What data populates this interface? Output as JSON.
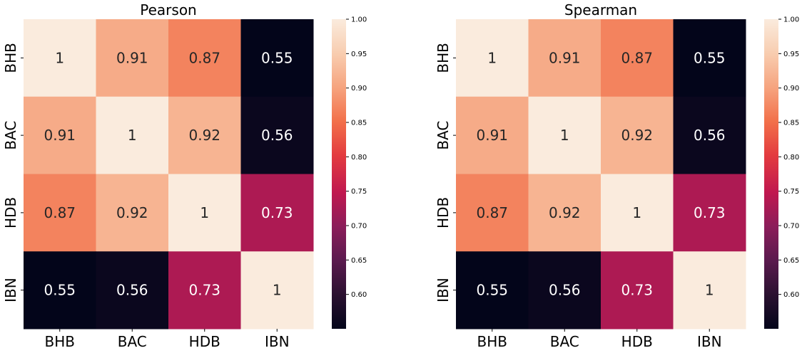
{
  "chart_data": [
    {
      "type": "heatmap",
      "title": "Pearson",
      "rows": [
        "BHB",
        "BAC",
        "HDB",
        "IBN"
      ],
      "cols": [
        "BHB",
        "BAC",
        "HDB",
        "IBN"
      ],
      "values": [
        [
          1,
          0.91,
          0.87,
          0.55
        ],
        [
          0.91,
          1,
          0.92,
          0.56
        ],
        [
          0.87,
          0.92,
          1,
          0.73
        ],
        [
          0.55,
          0.56,
          0.73,
          1
        ]
      ],
      "labels": [
        [
          "1",
          "0.91",
          "0.87",
          "0.55"
        ],
        [
          "0.91",
          "1",
          "0.92",
          "0.56"
        ],
        [
          "0.87",
          "0.92",
          "1",
          "0.73"
        ],
        [
          "0.55",
          "0.56",
          "0.73",
          "1"
        ]
      ],
      "vmin": 0.55,
      "vmax": 1.0,
      "colorbar_ticks": [
        "0.60",
        "0.65",
        "0.70",
        "0.75",
        "0.80",
        "0.85",
        "0.90",
        "0.95",
        "1.00"
      ],
      "colormap": "rocket",
      "xlabel": "",
      "ylabel": ""
    },
    {
      "type": "heatmap",
      "title": "Spearman",
      "rows": [
        "BHB",
        "BAC",
        "HDB",
        "IBN"
      ],
      "cols": [
        "BHB",
        "BAC",
        "HDB",
        "IBN"
      ],
      "values": [
        [
          1,
          0.91,
          0.87,
          0.55
        ],
        [
          0.91,
          1,
          0.92,
          0.56
        ],
        [
          0.87,
          0.92,
          1,
          0.73
        ],
        [
          0.55,
          0.56,
          0.73,
          1
        ]
      ],
      "labels": [
        [
          "1",
          "0.91",
          "0.87",
          "0.55"
        ],
        [
          "0.91",
          "1",
          "0.92",
          "0.56"
        ],
        [
          "0.87",
          "0.92",
          "1",
          "0.73"
        ],
        [
          "0.55",
          "0.56",
          "0.73",
          "1"
        ]
      ],
      "vmin": 0.55,
      "vmax": 1.0,
      "colorbar_ticks": [
        "0.60",
        "0.65",
        "0.70",
        "0.75",
        "0.80",
        "0.85",
        "0.90",
        "0.95",
        "1.00"
      ],
      "colormap": "rocket",
      "xlabel": "",
      "ylabel": ""
    }
  ]
}
